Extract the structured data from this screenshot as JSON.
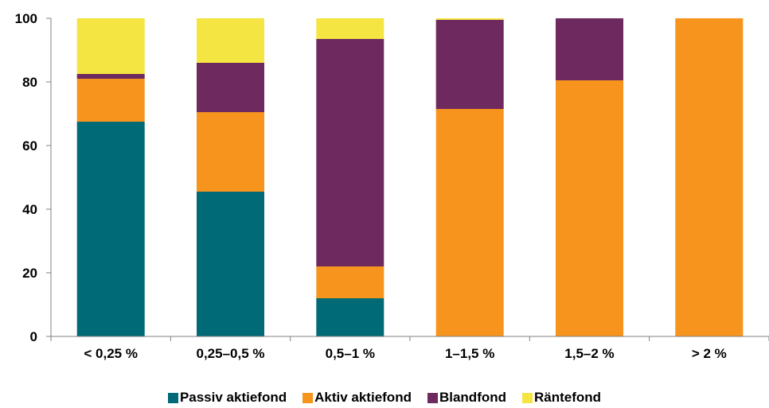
{
  "chart_data": {
    "type": "bar",
    "stacked": true,
    "categories": [
      "< 0,25 %",
      "0,25–0,5 %",
      "0,5–1 %",
      "1–1,5 %",
      "1,5–2 %",
      "> 2 %"
    ],
    "series": [
      {
        "name": "Passiv aktiefond",
        "color": "#006a76",
        "values": [
          67.5,
          45.5,
          12,
          0,
          0,
          0
        ]
      },
      {
        "name": "Aktiv aktiefond",
        "color": "#f6941e",
        "values": [
          13.5,
          25,
          10,
          71.5,
          80.5,
          100
        ]
      },
      {
        "name": "Blandfond",
        "color": "#6e2a5e",
        "values": [
          1.5,
          15.5,
          71.5,
          28,
          19.5,
          0
        ]
      },
      {
        "name": "Räntefond",
        "color": "#f4e543",
        "values": [
          17.5,
          14,
          6.5,
          0.5,
          0,
          0
        ]
      }
    ],
    "ylim": [
      0,
      100
    ],
    "yticks": [
      "0",
      "20",
      "40",
      "60",
      "80",
      "100"
    ],
    "grid": false,
    "legend_position": "bottom",
    "title": "",
    "xlabel": "",
    "ylabel": ""
  }
}
